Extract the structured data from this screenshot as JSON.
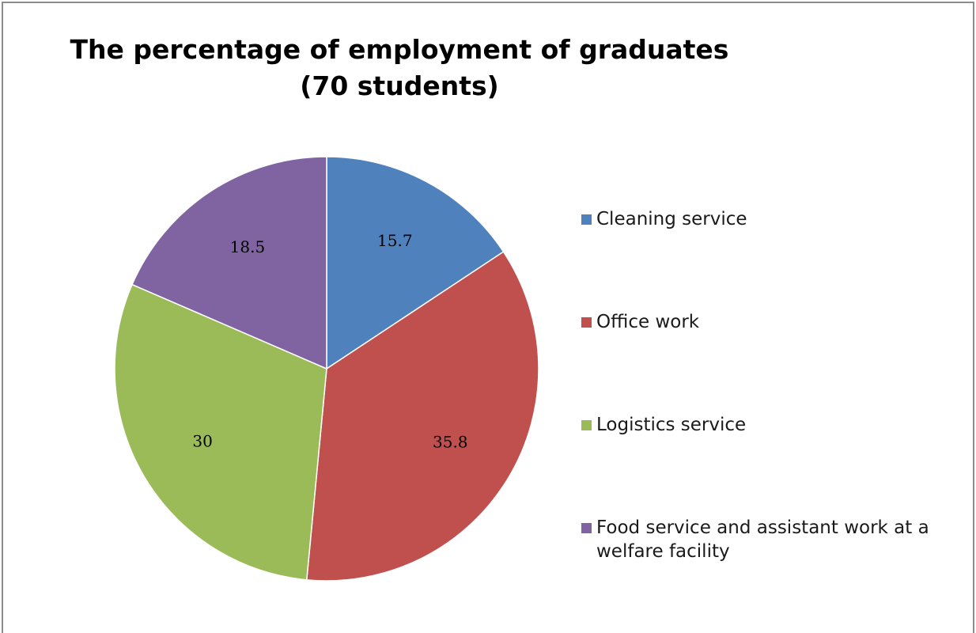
{
  "chart_data": {
    "type": "pie",
    "title": "The percentage of employment of graduates",
    "subtitle": "(70 students)",
    "legend_position": "right",
    "slices": [
      {
        "label": "Cleaning service",
        "value": 15.7,
        "display": "15.7",
        "color": "#4f81bd"
      },
      {
        "label": "Office work",
        "value": 35.8,
        "display": "35.8",
        "color": "#c0504d"
      },
      {
        "label": "Logistics service",
        "value": 30,
        "display": "30",
        "color": "#9bbb59"
      },
      {
        "label": "Food service and assistant work at a welfare facility",
        "value": 18.5,
        "display": "18.5",
        "color": "#8064a2"
      }
    ]
  }
}
